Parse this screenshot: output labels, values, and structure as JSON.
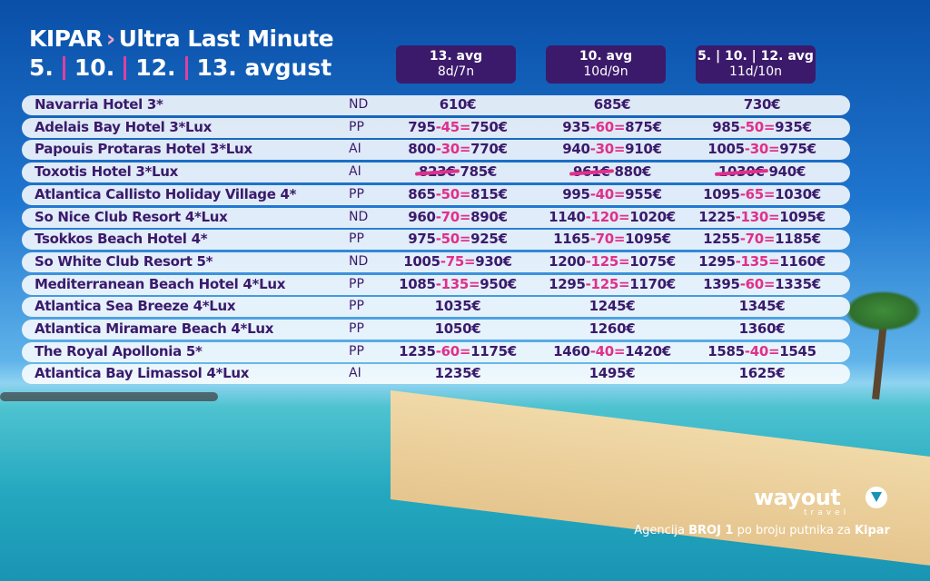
{
  "header": {
    "destination": "KIPAR",
    "chevron": "›",
    "title": "Ultra Last Minute",
    "dates": [
      "5.",
      "10.",
      "12.",
      "13. avgust"
    ]
  },
  "columns": [
    {
      "title": "13. avg",
      "sub": "8d/7n"
    },
    {
      "title": "10. avg",
      "sub": "10d/9n"
    },
    {
      "title": "5. | 10. | 12. avg",
      "sub": "11d/10n"
    }
  ],
  "hotels": [
    {
      "name": "Navarria Hotel 3*",
      "board": "ND",
      "prices": [
        {
          "final": "610€"
        },
        {
          "final": "685€"
        },
        {
          "final": "730€"
        }
      ]
    },
    {
      "name": "Adelais Bay Hotel 3*Lux",
      "board": "PP",
      "prices": [
        {
          "base": "795",
          "disc": "-45=",
          "final": "750€"
        },
        {
          "base": "935",
          "disc": "-60=",
          "final": "875€"
        },
        {
          "base": "985",
          "disc": "-50=",
          "final": "935€"
        }
      ]
    },
    {
      "name": "Papouis Protaras Hotel 3*Lux",
      "board": "AI",
      "prices": [
        {
          "base": "800",
          "disc": "-30=",
          "final": "770€"
        },
        {
          "base": "940",
          "disc": "-30=",
          "final": "910€"
        },
        {
          "base": "1005",
          "disc": "-30=",
          "final": "975€"
        }
      ]
    },
    {
      "name": "Toxotis Hotel 3*Lux",
      "board": "AI",
      "prices": [
        {
          "old": "823€",
          "final": "785€"
        },
        {
          "old": "961€",
          "final": "880€"
        },
        {
          "old": "1030€",
          "final": "940€"
        }
      ]
    },
    {
      "name": "Atlantica Callisto Holiday Village 4*",
      "board": "PP",
      "prices": [
        {
          "base": "865",
          "disc": "-50=",
          "final": "815€"
        },
        {
          "base": "995",
          "disc": "-40=",
          "final": "955€"
        },
        {
          "base": "1095",
          "disc": "-65=",
          "final": "1030€"
        }
      ]
    },
    {
      "name": "So Nice Club Resort 4*Lux",
      "board": "ND",
      "prices": [
        {
          "base": "960",
          "disc": "-70=",
          "final": "890€"
        },
        {
          "base": "1140",
          "disc": "-120=",
          "final": "1020€"
        },
        {
          "base": "1225",
          "disc": "-130=",
          "final": "1095€"
        }
      ]
    },
    {
      "name": "Tsokkos Beach Hotel 4*",
      "board": "PP",
      "prices": [
        {
          "base": "975",
          "disc": "-50=",
          "final": "925€"
        },
        {
          "base": "1165",
          "disc": "-70=",
          "final": "1095€"
        },
        {
          "base": "1255",
          "disc": "-70=",
          "final": "1185€"
        }
      ]
    },
    {
      "name": "So White Club Resort 5*",
      "board": "ND",
      "prices": [
        {
          "base": "1005",
          "disc": "-75=",
          "final": "930€"
        },
        {
          "base": "1200",
          "disc": "-125=",
          "final": "1075€"
        },
        {
          "base": "1295",
          "disc": "-135=",
          "final": "1160€"
        }
      ]
    },
    {
      "name": "Mediterranean Beach Hotel 4*Lux",
      "board": "PP",
      "prices": [
        {
          "base": "1085",
          "disc": "-135=",
          "final": "950€"
        },
        {
          "base": "1295",
          "disc": "-125=",
          "final": "1170€"
        },
        {
          "base": "1395",
          "disc": "-60=",
          "final": "1335€"
        }
      ]
    },
    {
      "name": "Atlantica Sea Breeze 4*Lux",
      "board": "PP",
      "prices": [
        {
          "final": "1035€"
        },
        {
          "final": "1245€"
        },
        {
          "final": "1345€"
        }
      ]
    },
    {
      "name": "Atlantica Miramare Beach 4*Lux",
      "board": "PP",
      "prices": [
        {
          "final": "1050€"
        },
        {
          "final": "1260€"
        },
        {
          "final": "1360€"
        }
      ]
    },
    {
      "name": "The Royal Apollonia 5*",
      "board": "PP",
      "prices": [
        {
          "base": "1235",
          "disc": "-60=",
          "final": "1175€"
        },
        {
          "base": "1460",
          "disc": "-40=",
          "final": "1420€"
        },
        {
          "base": "1585",
          "disc": "-40=",
          "final": "1545"
        }
      ]
    },
    {
      "name": "Atlantica Bay Limassol 4*Lux",
      "board": "AI",
      "prices": [
        {
          "final": "1235€"
        },
        {
          "final": "1495€"
        },
        {
          "final": "1625€"
        }
      ]
    }
  ],
  "brand": {
    "logo": "wayout",
    "sub": "travel",
    "tagline_pre": "Agencija ",
    "tagline_bold1": "BROJ 1",
    "tagline_mid": " po broju putnika za ",
    "tagline_bold2": "Kipar"
  },
  "colors": {
    "accent": "#e0308a",
    "primary": "#3b1a6b"
  }
}
